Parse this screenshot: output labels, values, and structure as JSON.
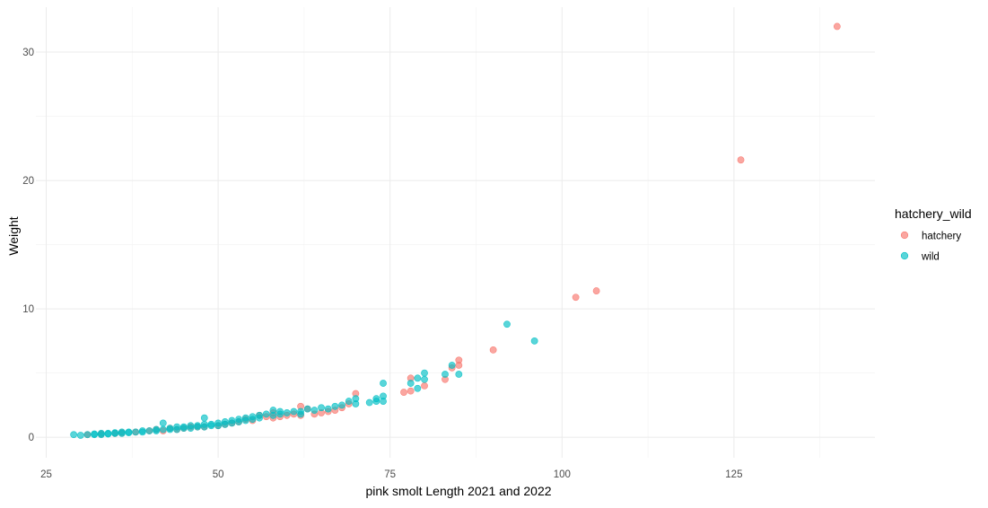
{
  "chart_data": {
    "type": "scatter",
    "title": "",
    "xlabel": "pink smolt Length 2021 and 2022",
    "ylabel": "Weight",
    "xlim": [
      23.5,
      145.5
    ],
    "ylim": [
      -1.6,
      33.5
    ],
    "x_ticks": [
      25,
      50,
      75,
      100,
      125
    ],
    "x_tick_labels": [
      "25",
      "50",
      "75",
      "100",
      "125"
    ],
    "y_ticks": [
      0,
      10,
      20,
      30
    ],
    "y_tick_labels": [
      "0",
      "10",
      "20",
      "30"
    ],
    "grid": true,
    "legend": {
      "title": "hatchery_wild",
      "position": "right",
      "entries": [
        {
          "label": "hatchery",
          "color": "#F8766D"
        },
        {
          "label": "wild",
          "color": "#00BFC4"
        }
      ]
    },
    "series": [
      {
        "name": "hatchery",
        "color": "#F8766D",
        "points": [
          [
            140,
            32.0
          ],
          [
            126,
            21.6
          ],
          [
            105,
            11.4
          ],
          [
            102,
            10.9
          ],
          [
            90,
            6.8
          ],
          [
            85,
            6.0
          ],
          [
            85,
            5.6
          ],
          [
            84,
            5.4
          ],
          [
            83,
            4.5
          ],
          [
            80,
            4.0
          ],
          [
            78,
            4.6
          ],
          [
            78,
            3.6
          ],
          [
            77,
            3.5
          ],
          [
            70,
            3.4
          ],
          [
            69,
            2.6
          ],
          [
            68,
            2.3
          ],
          [
            67,
            2.1
          ],
          [
            66,
            2.0
          ],
          [
            65,
            1.9
          ],
          [
            64,
            1.8
          ],
          [
            63,
            2.2
          ],
          [
            62,
            2.4
          ],
          [
            62,
            1.7
          ],
          [
            61,
            1.8
          ],
          [
            60,
            1.7
          ],
          [
            59,
            1.6
          ],
          [
            58,
            1.9
          ],
          [
            58,
            1.5
          ],
          [
            57,
            1.6
          ],
          [
            56,
            1.7
          ],
          [
            55,
            1.3
          ],
          [
            54,
            1.4
          ],
          [
            53,
            1.2
          ],
          [
            52,
            1.1
          ],
          [
            51,
            1.0
          ],
          [
            50,
            0.9
          ],
          [
            48,
            0.8
          ],
          [
            47,
            0.8
          ],
          [
            46,
            0.8
          ],
          [
            45,
            0.7
          ],
          [
            44,
            0.6
          ],
          [
            43,
            0.7
          ],
          [
            42,
            0.5
          ],
          [
            41,
            0.6
          ],
          [
            40,
            0.5
          ],
          [
            38,
            0.4
          ],
          [
            36,
            0.35
          ],
          [
            35,
            0.3
          ],
          [
            33,
            0.25
          ],
          [
            31,
            0.2
          ]
        ]
      },
      {
        "name": "wild",
        "color": "#00BFC4",
        "points": [
          [
            96,
            7.5
          ],
          [
            92,
            8.8
          ],
          [
            85,
            4.9
          ],
          [
            84,
            5.6
          ],
          [
            83,
            4.9
          ],
          [
            80,
            5.0
          ],
          [
            80,
            4.5
          ],
          [
            79,
            4.6
          ],
          [
            79,
            3.8
          ],
          [
            78,
            4.2
          ],
          [
            74,
            4.2
          ],
          [
            74,
            3.2
          ],
          [
            74,
            2.8
          ],
          [
            73,
            3.0
          ],
          [
            73,
            2.8
          ],
          [
            72,
            2.7
          ],
          [
            70,
            3.0
          ],
          [
            70,
            2.6
          ],
          [
            69,
            2.8
          ],
          [
            68,
            2.5
          ],
          [
            67,
            2.4
          ],
          [
            66,
            2.2
          ],
          [
            65,
            2.3
          ],
          [
            64,
            2.1
          ],
          [
            63,
            2.2
          ],
          [
            62,
            2.0
          ],
          [
            62,
            1.8
          ],
          [
            61,
            2.0
          ],
          [
            60,
            1.9
          ],
          [
            59,
            1.8
          ],
          [
            59,
            2.0
          ],
          [
            58,
            2.1
          ],
          [
            58,
            1.7
          ],
          [
            57,
            1.8
          ],
          [
            56,
            1.7
          ],
          [
            56,
            1.5
          ],
          [
            55,
            1.6
          ],
          [
            55,
            1.4
          ],
          [
            54,
            1.5
          ],
          [
            54,
            1.3
          ],
          [
            53,
            1.4
          ],
          [
            53,
            1.2
          ],
          [
            52,
            1.3
          ],
          [
            52,
            1.1
          ],
          [
            51,
            1.2
          ],
          [
            51,
            1.0
          ],
          [
            50,
            1.1
          ],
          [
            50,
            0.9
          ],
          [
            49,
            1.0
          ],
          [
            49,
            0.9
          ],
          [
            48,
            1.5
          ],
          [
            48,
            1.0
          ],
          [
            48,
            0.8
          ],
          [
            47,
            0.9
          ],
          [
            47,
            0.8
          ],
          [
            46,
            0.9
          ],
          [
            46,
            0.7
          ],
          [
            45,
            0.8
          ],
          [
            45,
            0.7
          ],
          [
            44,
            0.8
          ],
          [
            44,
            0.6
          ],
          [
            43,
            0.7
          ],
          [
            43,
            0.6
          ],
          [
            42,
            1.1
          ],
          [
            42,
            0.6
          ],
          [
            41,
            0.6
          ],
          [
            41,
            0.5
          ],
          [
            40,
            0.5
          ],
          [
            39,
            0.5
          ],
          [
            39,
            0.4
          ],
          [
            38,
            0.4
          ],
          [
            37,
            0.4
          ],
          [
            37,
            0.35
          ],
          [
            36,
            0.4
          ],
          [
            36,
            0.3
          ],
          [
            35,
            0.35
          ],
          [
            35,
            0.3
          ],
          [
            34,
            0.3
          ],
          [
            34,
            0.25
          ],
          [
            33,
            0.3
          ],
          [
            33,
            0.2
          ],
          [
            32,
            0.25
          ],
          [
            32,
            0.2
          ],
          [
            31,
            0.2
          ],
          [
            30,
            0.15
          ],
          [
            29,
            0.2
          ]
        ]
      }
    ]
  }
}
